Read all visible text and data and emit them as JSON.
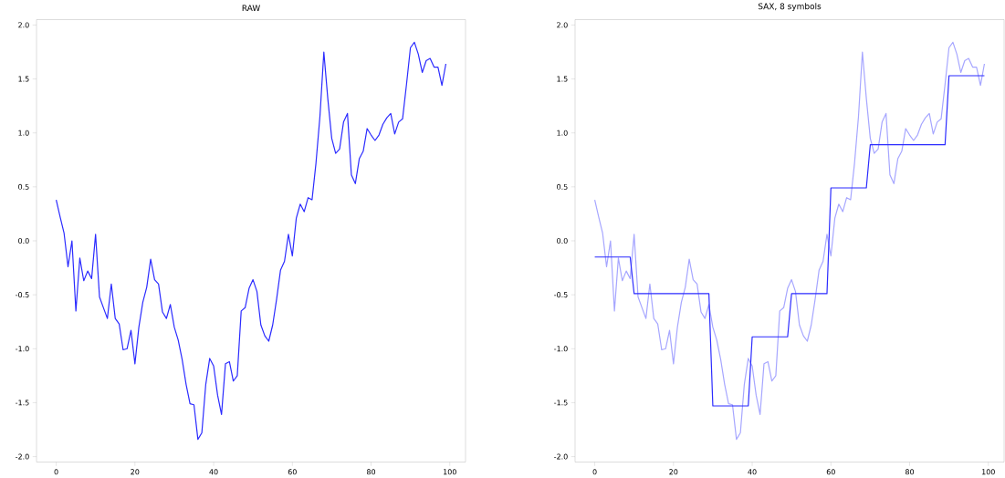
{
  "chart_data": [
    {
      "type": "line",
      "title": "RAW",
      "x": [
        0,
        1,
        2,
        3,
        4,
        5,
        6,
        7,
        8,
        9,
        10,
        11,
        12,
        13,
        14,
        15,
        16,
        17,
        18,
        19,
        20,
        21,
        22,
        23,
        24,
        25,
        26,
        27,
        28,
        29,
        30,
        31,
        32,
        33,
        34,
        35,
        36,
        37,
        38,
        39,
        40,
        41,
        42,
        43,
        44,
        45,
        46,
        47,
        48,
        49,
        50,
        51,
        52,
        53,
        54,
        55,
        56,
        57,
        58,
        59,
        60,
        61,
        62,
        63,
        64,
        65,
        66,
        67,
        68,
        69,
        70,
        71,
        72,
        73,
        74,
        75,
        76,
        77,
        78,
        79,
        80,
        81,
        82,
        83,
        84,
        85,
        86,
        87,
        88,
        89,
        90,
        91,
        92,
        93,
        94,
        95,
        96,
        97,
        98,
        99
      ],
      "series": [
        {
          "color": "#2b2bff",
          "values": [
            0.38,
            0.22,
            0.07,
            -0.24,
            0.0,
            -0.65,
            -0.16,
            -0.37,
            -0.28,
            -0.35,
            0.06,
            -0.52,
            -0.62,
            -0.72,
            -0.4,
            -0.72,
            -0.77,
            -1.01,
            -1.0,
            -0.83,
            -1.14,
            -0.8,
            -0.57,
            -0.43,
            -0.17,
            -0.36,
            -0.4,
            -0.66,
            -0.72,
            -0.59,
            -0.8,
            -0.92,
            -1.1,
            -1.33,
            -1.51,
            -1.52,
            -1.84,
            -1.78,
            -1.33,
            -1.09,
            -1.16,
            -1.43,
            -1.61,
            -1.14,
            -1.12,
            -1.3,
            -1.25,
            -0.65,
            -0.62,
            -0.44,
            -0.36,
            -0.47,
            -0.78,
            -0.88,
            -0.93,
            -0.78,
            -0.54,
            -0.27,
            -0.19,
            0.06,
            -0.14,
            0.21,
            0.34,
            0.27,
            0.4,
            0.38,
            0.72,
            1.15,
            1.75,
            1.32,
            0.95,
            0.81,
            0.85,
            1.1,
            1.18,
            0.61,
            0.53,
            0.76,
            0.83,
            1.04,
            0.98,
            0.93,
            0.98,
            1.08,
            1.14,
            1.18,
            0.99,
            1.1,
            1.13,
            1.45,
            1.79,
            1.84,
            1.73,
            1.56,
            1.67,
            1.69,
            1.61,
            1.61,
            1.44,
            1.64
          ]
        }
      ],
      "xlim": [
        -5,
        104
      ],
      "ylim": [
        -2.05,
        2.05
      ],
      "xticks": [
        0,
        20,
        40,
        60,
        80,
        100
      ],
      "yticks": [
        {
          "value": -2,
          "label": "-2.0"
        },
        {
          "value": -1.5,
          "label": "-1.5"
        },
        {
          "value": -1,
          "label": "-1.0"
        },
        {
          "value": -0.5,
          "label": "-0.5"
        },
        {
          "value": 0,
          "label": "0.0"
        },
        {
          "value": 0.5,
          "label": "0.5"
        },
        {
          "value": 1,
          "label": "1.0"
        },
        {
          "value": 1.5,
          "label": "1.5"
        },
        {
          "value": 2,
          "label": "2.0"
        }
      ]
    },
    {
      "type": "line",
      "title": "SAX, 8 symbols",
      "x": [
        0,
        1,
        2,
        3,
        4,
        5,
        6,
        7,
        8,
        9,
        10,
        11,
        12,
        13,
        14,
        15,
        16,
        17,
        18,
        19,
        20,
        21,
        22,
        23,
        24,
        25,
        26,
        27,
        28,
        29,
        30,
        31,
        32,
        33,
        34,
        35,
        36,
        37,
        38,
        39,
        40,
        41,
        42,
        43,
        44,
        45,
        46,
        47,
        48,
        49,
        50,
        51,
        52,
        53,
        54,
        55,
        56,
        57,
        58,
        59,
        60,
        61,
        62,
        63,
        64,
        65,
        66,
        67,
        68,
        69,
        70,
        71,
        72,
        73,
        74,
        75,
        76,
        77,
        78,
        79,
        80,
        81,
        82,
        83,
        84,
        85,
        86,
        87,
        88,
        89,
        90,
        91,
        92,
        93,
        94,
        95,
        96,
        97,
        98,
        99
      ],
      "series": [
        {
          "color": "#a6a6ff",
          "values": [
            0.38,
            0.22,
            0.07,
            -0.24,
            0.0,
            -0.65,
            -0.16,
            -0.37,
            -0.28,
            -0.35,
            0.06,
            -0.52,
            -0.62,
            -0.72,
            -0.4,
            -0.72,
            -0.77,
            -1.01,
            -1.0,
            -0.83,
            -1.14,
            -0.8,
            -0.57,
            -0.43,
            -0.17,
            -0.36,
            -0.4,
            -0.66,
            -0.72,
            -0.59,
            -0.8,
            -0.92,
            -1.1,
            -1.33,
            -1.51,
            -1.52,
            -1.84,
            -1.78,
            -1.33,
            -1.09,
            -1.16,
            -1.43,
            -1.61,
            -1.14,
            -1.12,
            -1.3,
            -1.25,
            -0.65,
            -0.62,
            -0.44,
            -0.36,
            -0.47,
            -0.78,
            -0.88,
            -0.93,
            -0.78,
            -0.54,
            -0.27,
            -0.19,
            0.06,
            -0.14,
            0.21,
            0.34,
            0.27,
            0.4,
            0.38,
            0.72,
            1.15,
            1.75,
            1.32,
            0.95,
            0.81,
            0.85,
            1.1,
            1.18,
            0.61,
            0.53,
            0.76,
            0.83,
            1.04,
            0.98,
            0.93,
            0.98,
            1.08,
            1.14,
            1.18,
            0.99,
            1.1,
            1.13,
            1.45,
            1.79,
            1.84,
            1.73,
            1.56,
            1.67,
            1.69,
            1.61,
            1.61,
            1.44,
            1.64
          ]
        },
        {
          "color": "#2b2bff",
          "values": [
            -0.15,
            -0.15,
            -0.15,
            -0.15,
            -0.15,
            -0.15,
            -0.15,
            -0.15,
            -0.15,
            -0.15,
            -0.49,
            -0.49,
            -0.49,
            -0.49,
            -0.49,
            -0.49,
            -0.49,
            -0.49,
            -0.49,
            -0.49,
            -0.49,
            -0.49,
            -0.49,
            -0.49,
            -0.49,
            -0.49,
            -0.49,
            -0.49,
            -0.49,
            -0.49,
            -1.53,
            -1.53,
            -1.53,
            -1.53,
            -1.53,
            -1.53,
            -1.53,
            -1.53,
            -1.53,
            -1.53,
            -0.89,
            -0.89,
            -0.89,
            -0.89,
            -0.89,
            -0.89,
            -0.89,
            -0.89,
            -0.89,
            -0.89,
            -0.49,
            -0.49,
            -0.49,
            -0.49,
            -0.49,
            -0.49,
            -0.49,
            -0.49,
            -0.49,
            -0.49,
            0.49,
            0.49,
            0.49,
            0.49,
            0.49,
            0.49,
            0.49,
            0.49,
            0.49,
            0.49,
            0.89,
            0.89,
            0.89,
            0.89,
            0.89,
            0.89,
            0.89,
            0.89,
            0.89,
            0.89,
            0.89,
            0.89,
            0.89,
            0.89,
            0.89,
            0.89,
            0.89,
            0.89,
            0.89,
            0.89,
            1.53,
            1.53,
            1.53,
            1.53,
            1.53,
            1.53,
            1.53,
            1.53,
            1.53,
            1.53
          ]
        }
      ],
      "xlim": [
        -5,
        104
      ],
      "ylim": [
        -2.05,
        2.05
      ],
      "xticks": [
        0,
        20,
        40,
        60,
        80,
        100
      ],
      "yticks": [
        {
          "value": -2,
          "label": "-2.0"
        },
        {
          "value": -1.5,
          "label": "-1.5"
        },
        {
          "value": -1,
          "label": "-1.0"
        },
        {
          "value": -0.5,
          "label": "-0.5"
        },
        {
          "value": 0,
          "label": "0.0"
        },
        {
          "value": 0.5,
          "label": "0.5"
        },
        {
          "value": 1,
          "label": "1.0"
        },
        {
          "value": 1.5,
          "label": "1.5"
        },
        {
          "value": 2,
          "label": "2.0"
        }
      ]
    }
  ]
}
